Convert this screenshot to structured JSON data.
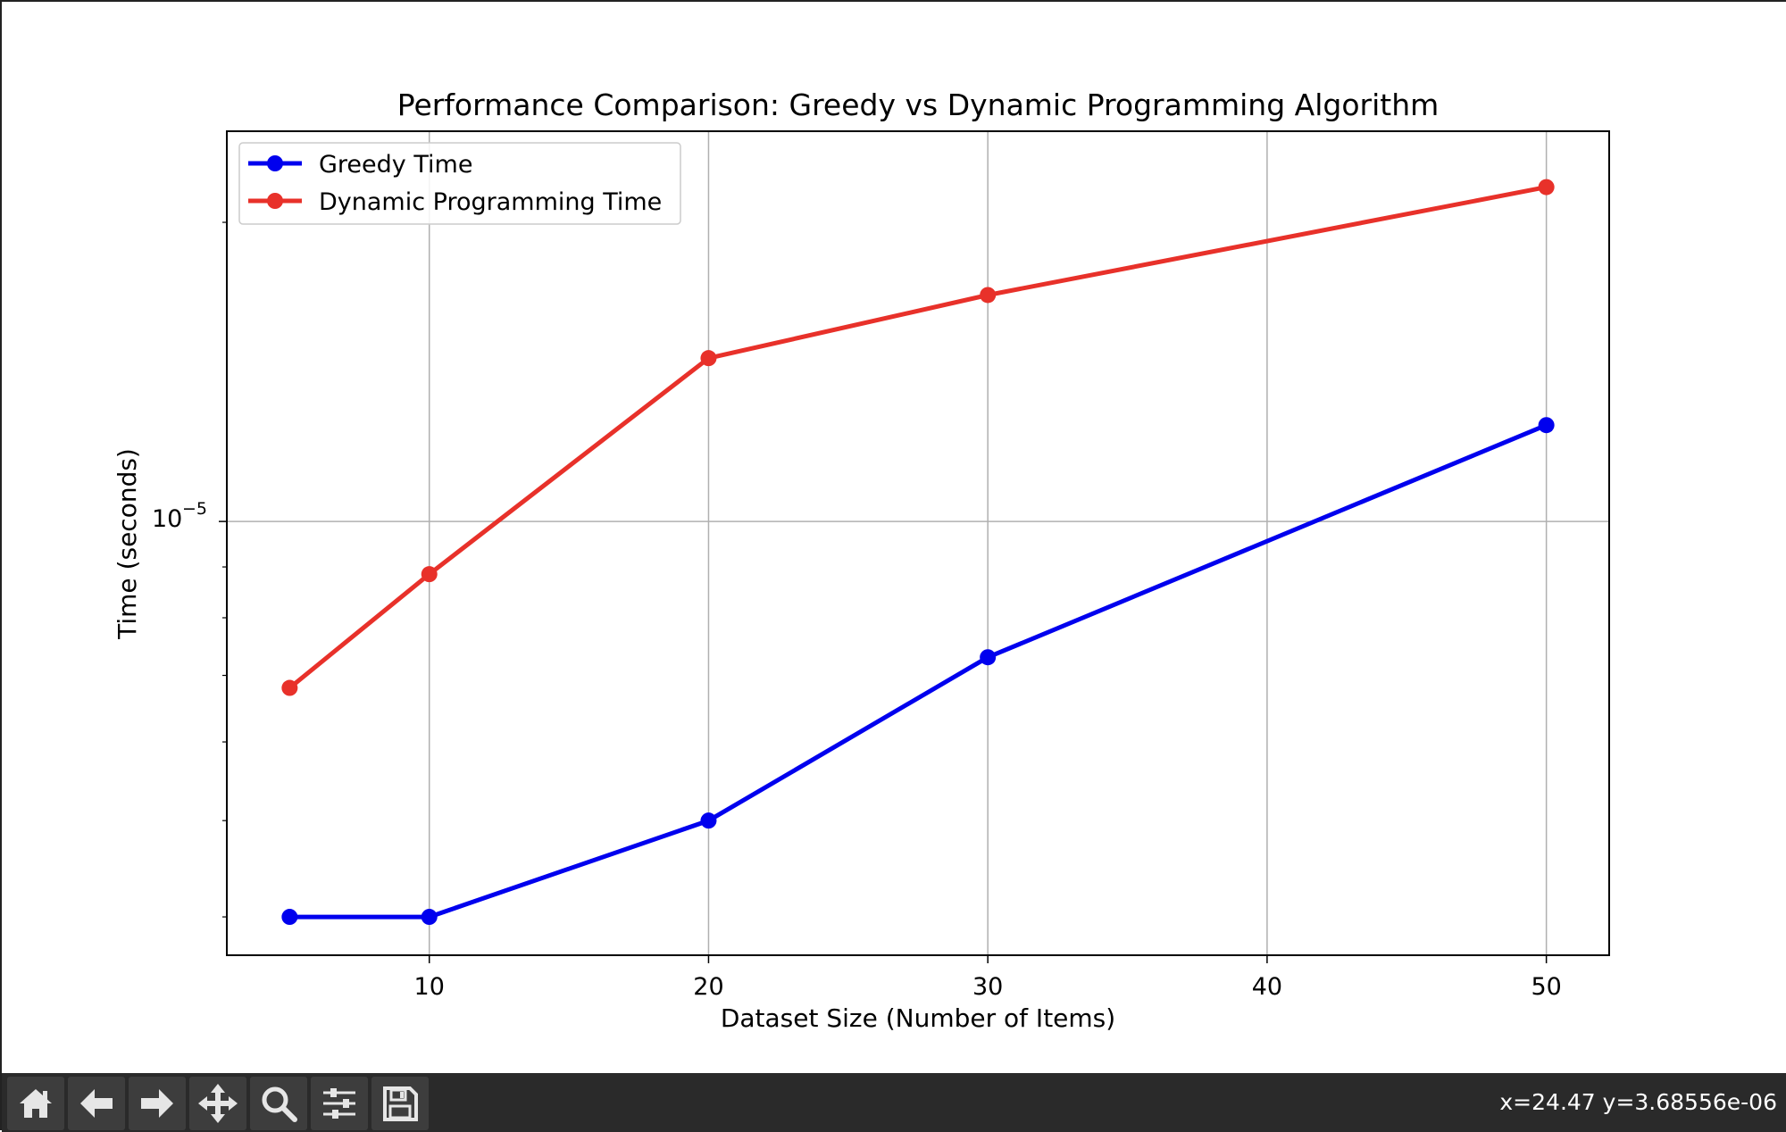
{
  "chart_data": {
    "type": "line",
    "title": "Performance Comparison: Greedy vs Dynamic Programming Algorithm",
    "xlabel": "Dataset Size (Number of Items)",
    "ylabel": "Time (seconds)",
    "x": [
      5,
      10,
      20,
      30,
      50
    ],
    "xticks": [
      10,
      20,
      30,
      40,
      50
    ],
    "xtick_labels": [
      "10",
      "20",
      "30",
      "40",
      "50"
    ],
    "xlim": [
      2.75,
      52.25
    ],
    "yscale": "log",
    "ylim": [
      3.66e-06,
      2.47e-05
    ],
    "ytick_major_base": "10",
    "ytick_major_exponent": "−5",
    "grid": true,
    "legend_position": "upper-left",
    "series": [
      {
        "name": "Greedy Time",
        "color": "#0000ee",
        "marker": "circle",
        "values": [
          4e-06,
          4e-06,
          5e-06,
          7.3e-06,
          1.25e-05
        ]
      },
      {
        "name": "Dynamic Programming Time",
        "color": "#e8312a",
        "marker": "circle",
        "values": [
          6.8e-06,
          8.85e-06,
          1.46e-05,
          1.69e-05,
          2.17e-05
        ]
      }
    ]
  },
  "toolbar": {
    "buttons": [
      {
        "name": "home-icon"
      },
      {
        "name": "back-arrow-icon"
      },
      {
        "name": "forward-arrow-icon"
      },
      {
        "name": "pan-move-icon"
      },
      {
        "name": "zoom-magnifier-icon"
      },
      {
        "name": "configure-subplots-icon"
      },
      {
        "name": "save-floppy-icon"
      }
    ],
    "coordinate_readout": "x=24.47 y=3.68556e-06"
  }
}
